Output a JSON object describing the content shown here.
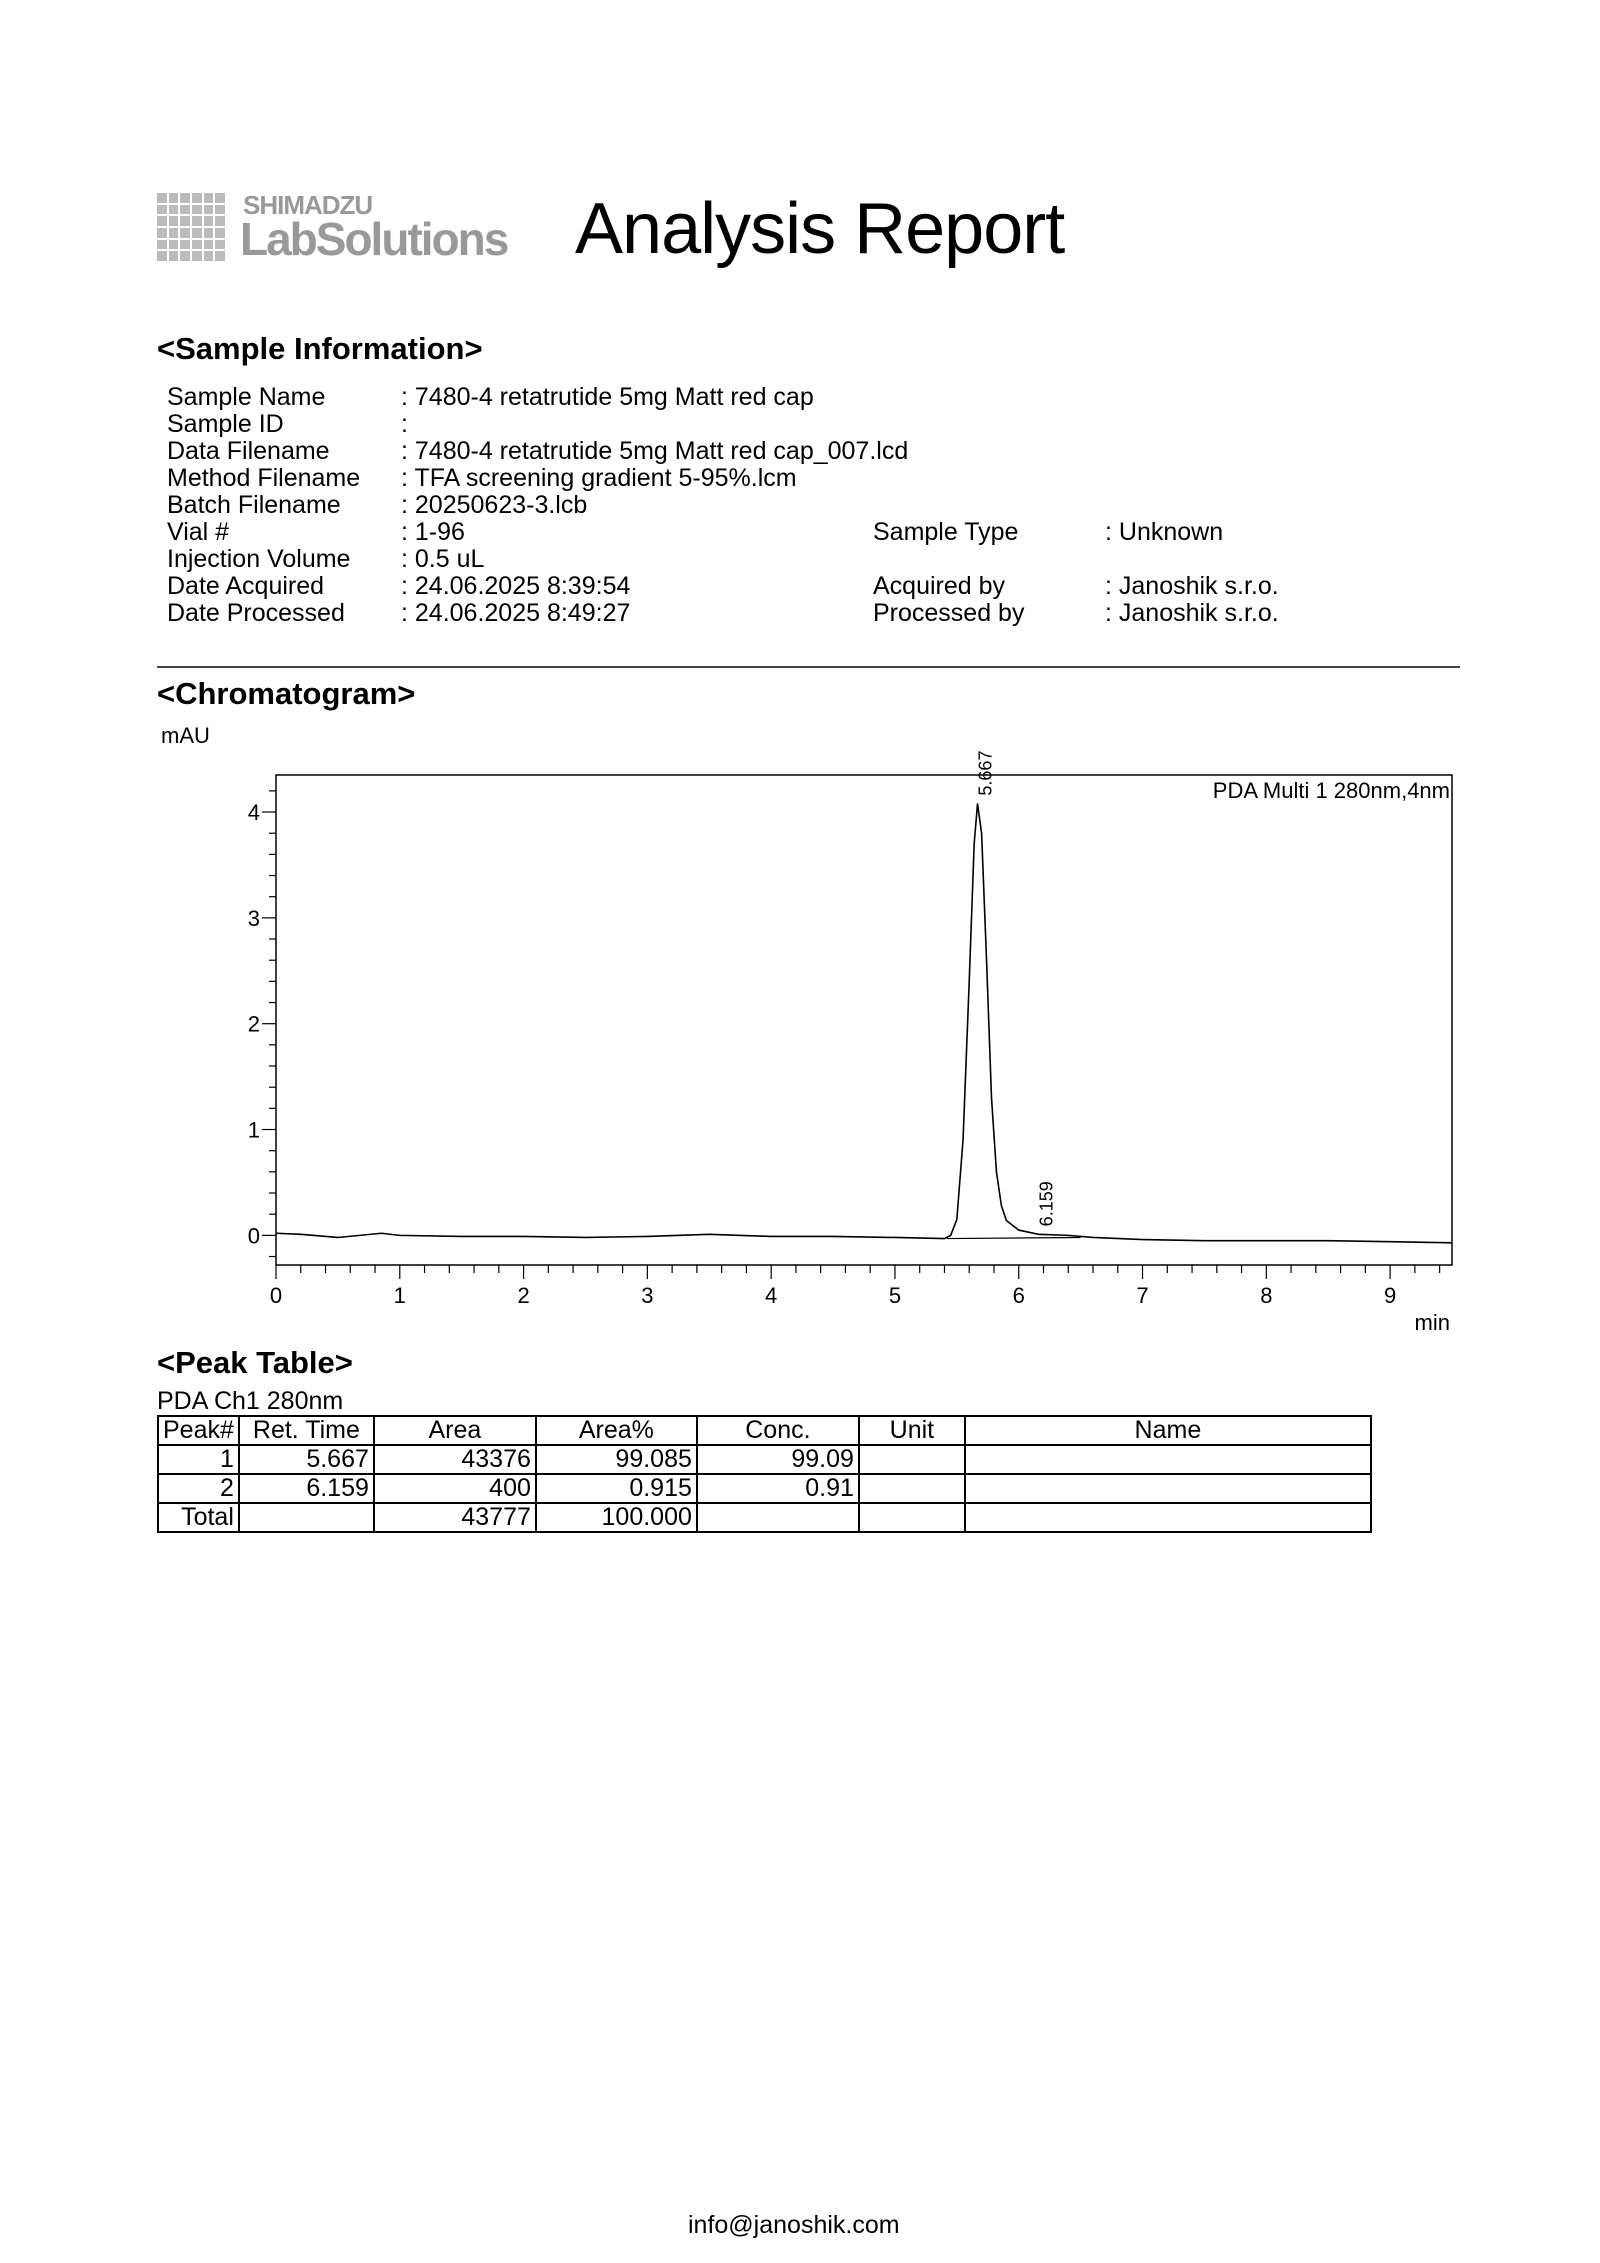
{
  "logo": {
    "brand": "SHIMADZU",
    "product": "LabSolutions"
  },
  "title": "Analysis Report",
  "sample_info": {
    "heading": "<Sample Information>",
    "left": [
      {
        "label": "Sample Name",
        "value": ": 7480-4 retatrutide 5mg Matt red cap"
      },
      {
        "label": "Sample ID",
        "value": ":"
      },
      {
        "label": "Data Filename",
        "value": ": 7480-4 retatrutide 5mg Matt red cap_007.lcd"
      },
      {
        "label": "Method Filename",
        "value": ": TFA screening gradient 5-95%.lcm"
      },
      {
        "label": "Batch Filename",
        "value": ": 20250623-3.lcb"
      },
      {
        "label": "Vial #",
        "value": ": 1-96"
      },
      {
        "label": "Injection Volume",
        "value": ": 0.5 uL"
      },
      {
        "label": "Date Acquired",
        "value": ": 24.06.2025 8:39:54"
      },
      {
        "label": "Date Processed",
        "value": ": 24.06.2025 8:49:27"
      }
    ],
    "right": [
      {
        "label": "Sample Type",
        "value": ": Unknown"
      },
      {
        "label": "Acquired by",
        "value": ": Janoshik s.r.o."
      },
      {
        "label": "Processed by",
        "value": ": Janoshik s.r.o."
      }
    ]
  },
  "chromatogram": {
    "heading": "<Chromatogram>"
  },
  "chart_data": {
    "type": "line",
    "ylabel": "mAU",
    "xlabel": "min",
    "legend": "PDA Multi 1 280nm,4nm",
    "legend_position": "top-right",
    "xlim": [
      0,
      9.5
    ],
    "ylim": [
      -0.28,
      4.35
    ],
    "x_ticks": [
      "0",
      "1",
      "2",
      "3",
      "4",
      "5",
      "6",
      "7",
      "8",
      "9"
    ],
    "y_ticks": [
      "0",
      "1",
      "2",
      "3",
      "4"
    ],
    "grid": false,
    "peak_labels": [
      {
        "x": 5.667,
        "y": 4.08,
        "label": "5.667"
      },
      {
        "x": 6.159,
        "y": 0.01,
        "label": "6.159"
      }
    ],
    "series": [
      {
        "x": [
          0,
          0.2,
          0.5,
          0.85,
          1,
          1.5,
          2,
          2.5,
          3,
          3.5,
          4,
          4.5,
          5,
          5.4,
          5.45,
          5.5,
          5.55,
          5.6,
          5.64,
          5.667,
          5.7,
          5.74,
          5.78,
          5.82,
          5.86,
          5.9,
          6.0,
          6.159,
          6.4,
          6.6,
          7,
          7.5,
          8,
          8.5,
          9,
          9.5
        ],
        "y": [
          0.02,
          0.01,
          -0.02,
          0.02,
          0,
          -0.01,
          -0.01,
          -0.02,
          -0.01,
          0.01,
          -0.01,
          -0.01,
          -0.02,
          -0.03,
          0.0,
          0.15,
          0.9,
          2.4,
          3.7,
          4.08,
          3.8,
          2.6,
          1.3,
          0.6,
          0.28,
          0.14,
          0.05,
          0.01,
          0.0,
          -0.02,
          -0.04,
          -0.05,
          -0.05,
          -0.05,
          -0.06,
          -0.07
        ]
      }
    ],
    "baseline": {
      "x": [
        5.42,
        6.5
      ],
      "y": [
        -0.03,
        -0.02
      ]
    }
  },
  "peak_table": {
    "heading": "<Peak Table>",
    "channel": "PDA Ch1 280nm",
    "columns": [
      "Peak#",
      "Ret. Time",
      "Area",
      "Area%",
      "Conc.",
      "Unit",
      "Name"
    ],
    "rows": [
      [
        "1",
        "5.667",
        "43376",
        "99.085",
        "99.09",
        "",
        ""
      ],
      [
        "2",
        "6.159",
        "400",
        "0.915",
        "0.91",
        "",
        ""
      ],
      [
        "Total",
        "",
        "43777",
        "100.000",
        "",
        "",
        ""
      ]
    ]
  },
  "footer": "info@janoshik.com"
}
